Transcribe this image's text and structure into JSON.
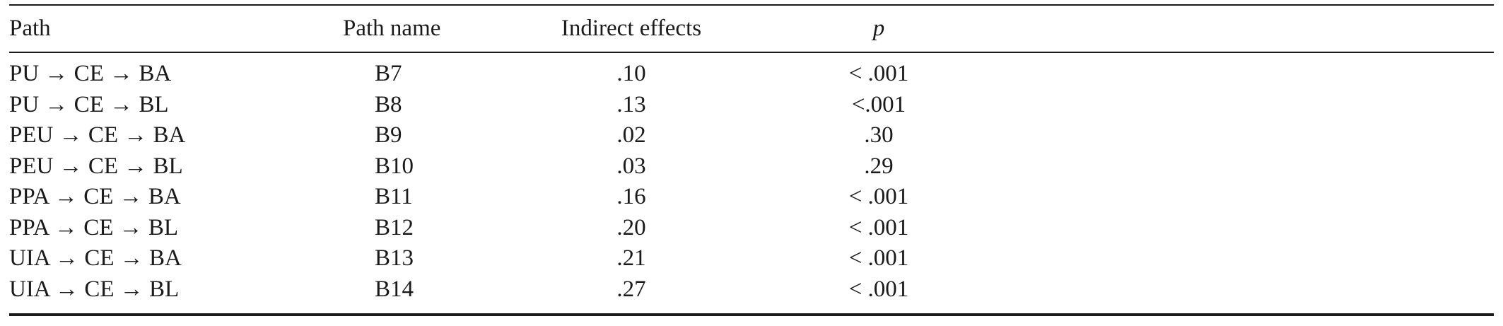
{
  "table": {
    "headers": {
      "path": "Path",
      "path_name": "Path name",
      "indirect_effects": "Indirect effects",
      "p": "p"
    },
    "rows": [
      {
        "path": "PU → CE → BA",
        "path_name": "B7",
        "indirect_effects": ".10",
        "p": "< .001"
      },
      {
        "path": "PU → CE → BL",
        "path_name": "B8",
        "indirect_effects": ".13",
        "p": "<.001"
      },
      {
        "path": "PEU → CE → BA",
        "path_name": "B9",
        "indirect_effects": ".02",
        "p": ".30"
      },
      {
        "path": "PEU → CE → BL",
        "path_name": "B10",
        "indirect_effects": ".03",
        "p": ".29"
      },
      {
        "path": "PPA → CE → BA",
        "path_name": "B11",
        "indirect_effects": ".16",
        "p": "< .001"
      },
      {
        "path": "PPA → CE → BL",
        "path_name": "B12",
        "indirect_effects": ".20",
        "p": "< .001"
      },
      {
        "path": "UIA → CE → BA",
        "path_name": "B13",
        "indirect_effects": ".21",
        "p": "< .001"
      },
      {
        "path": "UIA → CE → BL",
        "path_name": "B14",
        "indirect_effects": ".27",
        "p": "< .001"
      }
    ]
  }
}
